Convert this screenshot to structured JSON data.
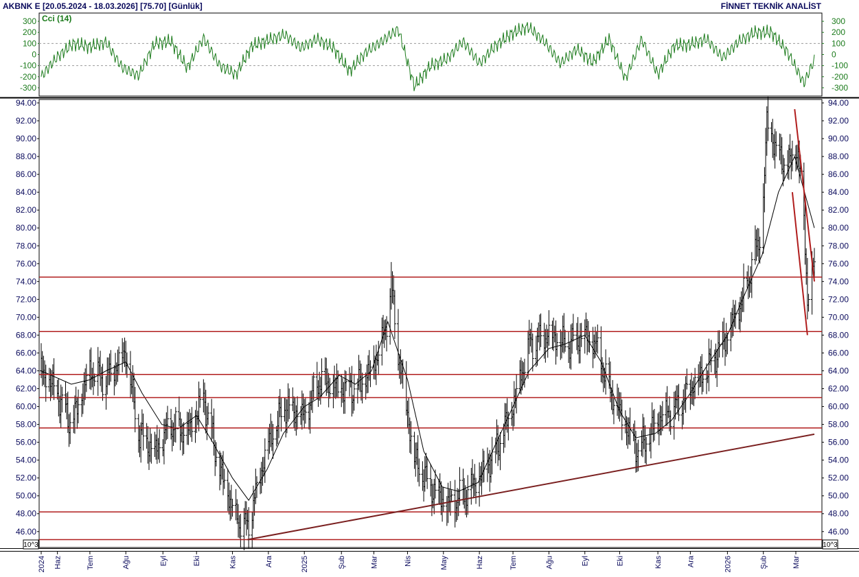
{
  "header": {
    "left": "AKBNK E  [20.05.2024 - 18.03.2026]  [75.70]  [Günlük]",
    "right": "FİNNET TEKNİK ANALİST"
  },
  "colors": {
    "background": "#ffffff",
    "frame": "#000000",
    "axis_text": "#0a0a5c",
    "price_bars": "#000000",
    "moving_average": "#000000",
    "support_resistance": "#b01c1c",
    "trendline": "#7a1f1f",
    "cci_line": "#1a7a1a",
    "cci_reference": "#999999"
  },
  "icons": {
    "scale_badge": "10^3-badge"
  },
  "chart_data": [
    {
      "type": "line",
      "panel": "indicator",
      "title": "Cci (14)",
      "ylim": [
        -350,
        350
      ],
      "yticks": [
        300,
        200,
        100,
        0,
        -100,
        -200,
        -300
      ],
      "ytick_labels": [
        "300",
        "200",
        "100",
        "0",
        "-100",
        "-200",
        "-300"
      ],
      "reference_lines": [
        100,
        -100
      ],
      "series": [
        {
          "name": "Cci (14)",
          "x": [
            "2024-05-20",
            "2024-06-03",
            "2024-06-17",
            "2024-07-01",
            "2024-07-15",
            "2024-07-29",
            "2024-08-12",
            "2024-08-26",
            "2024-09-09",
            "2024-09-23",
            "2024-10-07",
            "2024-10-21",
            "2024-11-04",
            "2024-11-18",
            "2024-12-02",
            "2024-12-16",
            "2024-12-30",
            "2025-01-13",
            "2025-01-27",
            "2025-02-10",
            "2025-02-24",
            "2025-03-10",
            "2025-03-24",
            "2025-04-07",
            "2025-04-21",
            "2025-05-05",
            "2025-05-19",
            "2025-06-02",
            "2025-06-16",
            "2025-06-30",
            "2025-07-14",
            "2025-07-28",
            "2025-08-11",
            "2025-08-25",
            "2025-09-08",
            "2025-09-22",
            "2025-10-06",
            "2025-10-20",
            "2025-11-03",
            "2025-11-17",
            "2025-12-01",
            "2025-12-15",
            "2025-12-29",
            "2026-01-12",
            "2026-01-26",
            "2026-02-09",
            "2026-02-23",
            "2026-03-09",
            "2026-03-18"
          ],
          "values": [
            -200,
            -20,
            100,
            70,
            110,
            -120,
            -190,
            100,
            120,
            -120,
            150,
            -100,
            -180,
            80,
            130,
            180,
            60,
            140,
            60,
            -150,
            20,
            120,
            230,
            -290,
            -100,
            -40,
            120,
            -80,
            80,
            190,
            250,
            120,
            -80,
            50,
            -70,
            140,
            -220,
            140,
            -180,
            80,
            90,
            140,
            -30,
            120,
            200,
            200,
            20,
            -260,
            -50
          ]
        }
      ]
    },
    {
      "type": "bar",
      "bar_style": "OHLC",
      "panel": "price",
      "ylim": [
        44.6,
        94.0
      ],
      "yticks": [
        94,
        92,
        90,
        88,
        86,
        84,
        82,
        80,
        78,
        76,
        74,
        72,
        70,
        68,
        66,
        64,
        62,
        60,
        58,
        56,
        54,
        52,
        50,
        48,
        46
      ],
      "ytick_labels": [
        "94.00",
        "92.00",
        "90.00",
        "88.00",
        "86.00",
        "84.00",
        "82.00",
        "80.00",
        "78.00",
        "76.00",
        "74.00",
        "72.00",
        "70.00",
        "68.00",
        "66.00",
        "64.00",
        "62.00",
        "60.00",
        "58.00",
        "56.00",
        "54.00",
        "52.00",
        "50.00",
        "48.00",
        "46.00"
      ],
      "x_start": "2024-05-20",
      "x_end": "2026-03-18",
      "xtick_labels": [
        {
          "date": "2024-05-20",
          "label": "2024"
        },
        {
          "date": "2024-06-03",
          "label": "Haz"
        },
        {
          "date": "2024-07-01",
          "label": "Tem"
        },
        {
          "date": "2024-08-01",
          "label": "Ağu"
        },
        {
          "date": "2024-09-02",
          "label": "Eyl"
        },
        {
          "date": "2024-10-01",
          "label": "Eki"
        },
        {
          "date": "2024-11-01",
          "label": "Kas"
        },
        {
          "date": "2024-12-02",
          "label": "Ara"
        },
        {
          "date": "2025-01-02",
          "label": "2025"
        },
        {
          "date": "2025-02-03",
          "label": "Şub"
        },
        {
          "date": "2025-03-03",
          "label": "Mar"
        },
        {
          "date": "2025-04-01",
          "label": "Nis"
        },
        {
          "date": "2025-05-02",
          "label": "May"
        },
        {
          "date": "2025-06-02",
          "label": "Haz"
        },
        {
          "date": "2025-07-01",
          "label": "Tem"
        },
        {
          "date": "2025-08-01",
          "label": "Ağu"
        },
        {
          "date": "2025-09-01",
          "label": "Eyl"
        },
        {
          "date": "2025-10-01",
          "label": "Eki"
        },
        {
          "date": "2025-11-03",
          "label": "Kas"
        },
        {
          "date": "2025-12-01",
          "label": "Ara"
        },
        {
          "date": "2026-01-02",
          "label": "2026"
        },
        {
          "date": "2026-02-02",
          "label": "Şub"
        },
        {
          "date": "2026-03-02",
          "label": "Mar"
        }
      ],
      "scale_label": "10^3",
      "close_path": {
        "x": [
          "2024-05-20",
          "2024-06-01",
          "2024-06-15",
          "2024-07-01",
          "2024-07-15",
          "2024-08-01",
          "2024-08-12",
          "2024-08-26",
          "2024-09-09",
          "2024-09-23",
          "2024-10-07",
          "2024-10-21",
          "2024-11-04",
          "2024-11-14",
          "2024-12-02",
          "2024-12-16",
          "2025-01-02",
          "2025-01-15",
          "2025-02-01",
          "2025-02-15",
          "2025-03-01",
          "2025-03-12",
          "2025-03-18",
          "2025-03-25",
          "2025-04-07",
          "2025-04-21",
          "2025-05-05",
          "2025-05-19",
          "2025-06-02",
          "2025-06-16",
          "2025-07-01",
          "2025-07-15",
          "2025-08-01",
          "2025-08-15",
          "2025-09-01",
          "2025-09-10",
          "2025-09-22",
          "2025-10-06",
          "2025-10-17",
          "2025-10-27",
          "2025-11-07",
          "2025-11-20",
          "2025-12-01",
          "2025-12-15",
          "2026-01-02",
          "2026-01-15",
          "2026-02-01",
          "2026-02-05",
          "2026-02-15",
          "2026-02-25",
          "2026-03-01",
          "2026-03-08",
          "2026-03-12",
          "2026-03-18"
        ],
        "values": [
          64,
          62,
          58,
          64,
          63,
          66,
          57,
          55,
          58,
          57,
          61,
          53,
          47.5,
          46.5,
          56,
          60,
          59,
          63,
          62,
          62,
          64,
          68,
          73.5,
          65,
          54,
          51,
          49,
          50,
          52,
          55,
          60,
          67,
          68,
          67,
          68,
          67,
          62,
          58,
          55,
          57,
          59,
          60,
          62,
          64,
          68,
          72,
          80,
          92,
          88,
          87,
          90,
          84,
          72,
          75.7
        ]
      },
      "moving_average": {
        "x": [
          "2024-05-20",
          "2024-06-15",
          "2024-07-01",
          "2024-07-15",
          "2024-08-01",
          "2024-08-15",
          "2024-09-01",
          "2024-09-15",
          "2024-10-01",
          "2024-10-15",
          "2024-11-01",
          "2024-11-15",
          "2024-12-01",
          "2024-12-15",
          "2025-01-02",
          "2025-01-15",
          "2025-02-01",
          "2025-02-15",
          "2025-03-01",
          "2025-03-15",
          "2025-04-01",
          "2025-04-15",
          "2025-05-01",
          "2025-05-15",
          "2025-06-01",
          "2025-06-15",
          "2025-07-01",
          "2025-07-15",
          "2025-08-01",
          "2025-08-15",
          "2025-09-01",
          "2025-09-15",
          "2025-10-01",
          "2025-10-15",
          "2025-11-01",
          "2025-11-15",
          "2025-12-01",
          "2025-12-15",
          "2026-01-02",
          "2026-01-15",
          "2026-02-01",
          "2026-02-15",
          "2026-03-01",
          "2026-03-18"
        ],
        "values": [
          64,
          62.5,
          63,
          64,
          65,
          61.5,
          58,
          57.5,
          59,
          56,
          52,
          49.5,
          53,
          57,
          60,
          61,
          63.5,
          62.5,
          64,
          69.5,
          63,
          55,
          51,
          50.5,
          51.5,
          55.5,
          60,
          64,
          66.5,
          67,
          68,
          65,
          59.5,
          56.5,
          57,
          58.5,
          61.5,
          64.5,
          68,
          72,
          77,
          84,
          88,
          80
        ]
      },
      "horizontal_levels": [
        74.5,
        68.4,
        63.6,
        61.0,
        57.6,
        48.2,
        45.1
      ],
      "trendlines": [
        {
          "from": {
            "x": "2024-11-14",
            "y": 45.1
          },
          "to": {
            "x": "2026-03-18",
            "y": 56.9
          },
          "color_key": "trendline"
        },
        {
          "from": {
            "x": "2026-03-01",
            "y": 93.3
          },
          "to": {
            "x": "2026-03-18",
            "y": 74.0
          },
          "color_key": "support_resistance"
        },
        {
          "from": {
            "x": "2026-02-27",
            "y": 84.0
          },
          "to": {
            "x": "2026-03-12",
            "y": 68.0
          },
          "color_key": "support_resistance"
        }
      ]
    }
  ]
}
